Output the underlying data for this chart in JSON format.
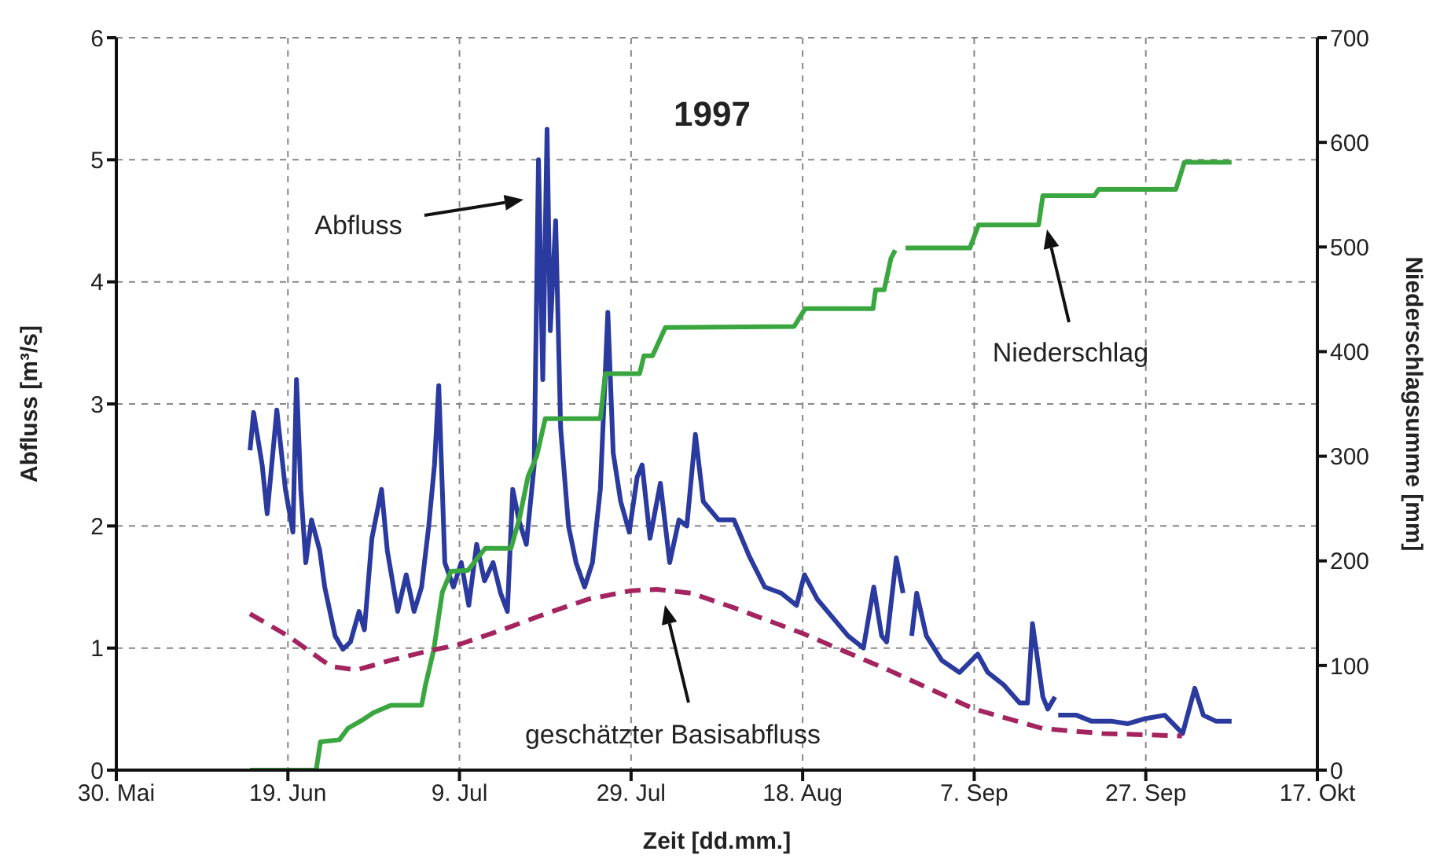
{
  "chart_data": {
    "type": "line",
    "title": "1997",
    "xlabel": "Zeit [dd.mm.]",
    "ylabel": "Abfluss [m³/s]",
    "y2label": "Niederschlagsumme [mm]",
    "xlim": [
      "1997-05-30",
      "1997-10-17"
    ],
    "xticks": [
      {
        "value": "1997-05-30",
        "label": "30. Mai"
      },
      {
        "value": "1997-06-19",
        "label": "19. Jun"
      },
      {
        "value": "1997-07-09",
        "label": "9. Jul"
      },
      {
        "value": "1997-07-29",
        "label": "29. Jul"
      },
      {
        "value": "1997-08-18",
        "label": "18. Aug"
      },
      {
        "value": "1997-09-07",
        "label": "7. Sep"
      },
      {
        "value": "1997-09-27",
        "label": "27. Sep"
      },
      {
        "value": "1997-10-17",
        "label": "17. Okt"
      }
    ],
    "ylim": [
      0,
      6
    ],
    "yticks": [
      0,
      1,
      2,
      3,
      4,
      5,
      6
    ],
    "y2lim": [
      0,
      700
    ],
    "y2ticks": [
      0,
      100,
      200,
      300,
      400,
      500,
      600,
      700
    ],
    "grid": true,
    "series": [
      {
        "color": "#2a3a9e",
        "x": [
          "1997-06-14T14:00",
          "1997-06-15T00:00",
          "1997-06-16T00:00",
          "1997-06-16T14:00",
          "1997-06-17T17:00",
          "1997-06-18T17:00",
          "1997-06-19T14:00",
          "1997-06-20",
          "1997-06-20T12:00",
          "1997-06-21T02:00",
          "1997-06-21T18:00",
          "1997-06-22T17:00",
          "1997-06-23T07:00",
          "1997-06-24T12:00",
          "1997-06-25T10:00",
          "1997-06-26T07:00",
          "1997-06-27T07:00",
          "1997-06-27T22:00",
          "1997-06-28T19:00",
          "1997-06-29T22:00",
          "1997-06-30T14:00",
          "1997-07-01T19:00",
          "1997-07-02T19:00",
          "1997-07-03T17:00",
          "1997-07-04T14:00",
          "1997-07-05T10:00",
          "1997-07-06T02:00",
          "1997-07-06T14:00",
          "1997-07-07T07:00",
          "1997-07-08T07:00",
          "1997-07-09T05:00",
          "1997-07-10T02:00",
          "1997-07-11",
          "1997-07-11T22:00",
          "1997-07-12T22:00",
          "1997-07-13T19:00",
          "1997-07-14T14:00",
          "1997-07-15T05:00",
          "1997-07-15T22:00",
          "1997-07-16T19:00",
          "1997-07-17T17:00",
          "1997-07-18T05:00",
          "1997-07-18T17:00",
          "1997-07-19T05:00",
          "1997-07-19T14:00",
          "1997-07-20T05:00",
          "1997-07-20T19:00",
          "1997-07-21T17:00",
          "1997-07-22T14:00",
          "1997-07-23T14:00",
          "1997-07-24T12:00",
          "1997-07-25T10:00",
          "1997-07-26T07:00",
          "1997-07-26T22:00",
          "1997-07-27T19:00",
          "1997-07-28T19:00",
          "1997-07-29T17:00",
          "1997-07-30T07:00",
          "1997-07-31T05:00",
          "1997-08-01T10:00",
          "1997-08-02T12:00",
          "1997-08-03T14:00",
          "1997-08-04T12:00",
          "1997-08-05T12:00",
          "1997-08-06T10:00",
          "1997-08-08T05:00",
          "1997-08-10",
          "1997-08-11T19:00",
          "1997-08-13T14:00",
          "1997-08-15T12:00",
          "1997-08-17T07:00",
          "1997-08-18T05:00",
          "1997-08-19T17:00",
          "1997-08-21T12:00",
          "1997-08-23T07:00",
          "1997-08-25T02:00",
          "1997-08-26T07:00",
          "1997-08-27T05:00",
          "1997-08-27T19:00",
          "1997-08-28T22:00",
          "1997-08-29T17:00",
          "1997-08-30T05:00",
          "1997-08-30T17:00",
          "1997-08-31T07:00",
          "1997-09-01T10:00",
          "1997-09-03T05:00",
          "1997-09-05T07:00",
          "1997-09-07T10:00",
          "1997-09-08T14:00",
          "1997-09-10T10:00",
          "1997-09-12T07:00",
          "1997-09-13T05:00",
          "1997-09-13T19:00",
          "1997-09-15",
          "1997-09-15T14:00",
          "1997-09-16T10:00",
          "1997-09-16T14:00",
          "1997-09-16T19:00",
          "1997-09-18T22:00",
          "1997-09-20T17:00",
          "1997-09-23T02:00",
          "1997-09-24T22:00",
          "1997-09-26T19:00",
          "1997-09-29T05:00",
          "1997-10-01T07:00",
          "1997-10-02T17:00",
          "1997-10-03T17:00",
          "1997-10-05T05:00",
          "1997-10-07"
        ],
        "values": [
          2.62,
          2.93,
          2.5,
          2.1,
          2.95,
          2.3,
          1.95,
          3.2,
          2.3,
          1.7,
          2.05,
          1.8,
          1.5,
          1.1,
          0.99,
          1.05,
          1.3,
          1.15,
          1.9,
          2.3,
          1.8,
          1.3,
          1.6,
          1.3,
          1.5,
          2.0,
          2.5,
          3.15,
          1.7,
          1.5,
          1.7,
          1.35,
          1.85,
          1.55,
          1.7,
          1.45,
          1.3,
          2.3,
          2.05,
          1.85,
          2.5,
          5.0,
          3.2,
          5.25,
          3.6,
          4.5,
          2.8,
          2.0,
          1.7,
          1.5,
          1.7,
          2.3,
          3.75,
          2.6,
          2.2,
          1.95,
          2.4,
          2.5,
          1.9,
          2.35,
          1.7,
          2.05,
          2.0,
          2.75,
          2.2,
          2.05,
          2.05,
          1.75,
          1.5,
          1.45,
          1.35,
          1.6,
          1.4,
          1.25,
          1.1,
          1.0,
          1.5,
          1.1,
          1.05,
          1.74,
          1.45,
          null,
          1.1,
          1.45,
          1.1,
          0.9,
          0.8,
          0.95,
          0.8,
          0.7,
          0.55,
          0.55,
          1.2,
          0.6,
          0.5,
          0.6,
          null,
          0.45,
          0.45,
          0.4,
          0.4,
          0.38,
          0.42,
          0.45,
          0.3,
          0.67,
          0.45,
          0.4,
          0.4
        ]
      },
      {
        "color": "#3aa63f",
        "axis": "y2",
        "x": [
          "1997-06-14T14:00",
          "1997-06-22T07:00",
          "1997-06-22T19:00",
          "1997-06-25",
          "1997-06-26",
          "1997-06-27T12:00",
          "1997-06-29",
          "1997-07-01",
          "1997-07-04T14:00",
          "1997-07-05",
          "1997-07-06",
          "1997-07-07",
          "1997-07-08",
          "1997-07-10",
          "1997-07-12",
          "1997-07-15",
          "1997-07-16",
          "1997-07-17",
          "1997-07-18",
          "1997-07-19",
          "1997-07-25T10:00",
          "1997-07-26",
          "1997-07-30",
          "1997-07-30T12:00",
          "1997-07-31T12:00",
          "1997-08-02",
          "1997-08-17",
          "1997-08-18T07:00",
          "1997-08-26T05:00",
          "1997-08-26T12:00",
          "1997-08-27T12:00",
          "1997-08-28T07:00",
          "1997-08-28T19:00",
          "1997-08-29T12:00",
          "1997-08-30",
          "1997-09-06T12:00",
          "1997-09-07T12:00",
          "1997-09-14T12:00",
          "1997-09-15",
          "1997-09-21",
          "1997-09-21T12:00",
          "1997-09-30T12:00",
          "1997-10-01T12:00",
          "1997-10-07"
        ],
        "values": [
          0,
          0,
          27,
          29,
          40,
          47,
          55,
          62,
          62,
          80,
          115,
          170,
          190,
          191,
          212,
          212,
          241,
          281,
          300,
          336,
          336,
          379,
          379,
          396,
          396,
          423,
          424,
          441,
          441,
          459,
          459,
          489,
          497,
          null,
          499,
          499,
          521,
          521,
          549,
          549,
          555,
          555,
          581,
          581
        ]
      },
      {
        "color": "#a3245f",
        "line_style": "dashed",
        "x": [
          "1997-06-14T14:00",
          "1997-06-19",
          "1997-06-22",
          "1997-06-24",
          "1997-06-27",
          "1997-07-01",
          "1997-07-05",
          "1997-07-09",
          "1997-07-14",
          "1997-07-19",
          "1997-07-24",
          "1997-07-29",
          "1997-08-01",
          "1997-08-05",
          "1997-08-10",
          "1997-08-18",
          "1997-08-28",
          "1997-09-07",
          "1997-09-15",
          "1997-09-22",
          "1997-10-01T05:00"
        ],
        "values": [
          1.28,
          1.1,
          0.95,
          0.85,
          0.82,
          0.9,
          0.97,
          1.03,
          1.15,
          1.28,
          1.4,
          1.47,
          1.48,
          1.45,
          1.33,
          1.12,
          0.82,
          0.5,
          0.34,
          0.3,
          0.28
        ]
      }
    ],
    "annotations": [
      "Abfluss",
      "Niederschlag",
      "geschätzter Basisabfluss"
    ]
  }
}
